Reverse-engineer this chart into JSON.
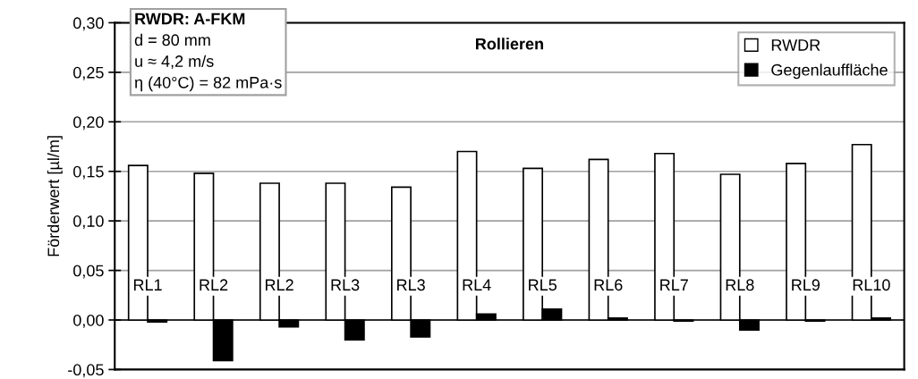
{
  "chart_data": {
    "type": "bar",
    "title": "Rollieren",
    "ylabel": "Förderwert [µl/m]",
    "categories": [
      "RL1",
      "RL2",
      "RL2",
      "RL3",
      "RL3",
      "RL4",
      "RL5",
      "RL6",
      "RL7",
      "RL8",
      "RL9",
      "RL10"
    ],
    "series": [
      {
        "name": "RWDR",
        "color": "#ffffff",
        "values": [
          0.156,
          0.148,
          0.138,
          0.138,
          0.134,
          0.17,
          0.153,
          0.162,
          0.168,
          0.147,
          0.158,
          0.177
        ]
      },
      {
        "name": "Gegenlauffläche",
        "color": "#000000",
        "values": [
          -0.002,
          -0.041,
          -0.007,
          -0.02,
          -0.017,
          0.006,
          0.011,
          0.002,
          -0.001,
          -0.01,
          -0.001,
          0.002
        ]
      }
    ],
    "ylim": [
      -0.05,
      0.3
    ],
    "yticks": [
      {
        "value": -0.05,
        "label": "-0,05"
      },
      {
        "value": 0,
        "label": "0,00"
      },
      {
        "value": 0.05,
        "label": "0,05"
      },
      {
        "value": 0.1,
        "label": "0,10"
      },
      {
        "value": 0.15,
        "label": "0,15"
      },
      {
        "value": 0.2,
        "label": "0,20"
      },
      {
        "value": 0.25,
        "label": "0,25"
      },
      {
        "value": 0.3,
        "label": "0,30"
      }
    ],
    "annotations": [
      "RWDR: A-FKM",
      "d = 80 mm",
      "u ≈ 4,2 m/s",
      "η (40°C) = 82 mPa·s"
    ],
    "grid": "y",
    "legend": "top right"
  }
}
